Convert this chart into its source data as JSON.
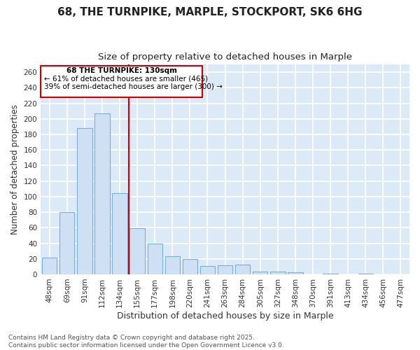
{
  "title": "68, THE TURNPIKE, MARPLE, STOCKPORT, SK6 6HG",
  "subtitle": "Size of property relative to detached houses in Marple",
  "xlabel": "Distribution of detached houses by size in Marple",
  "ylabel": "Number of detached properties",
  "categories": [
    "48sqm",
    "69sqm",
    "91sqm",
    "112sqm",
    "134sqm",
    "155sqm",
    "177sqm",
    "198sqm",
    "220sqm",
    "241sqm",
    "263sqm",
    "284sqm",
    "305sqm",
    "327sqm",
    "348sqm",
    "370sqm",
    "391sqm",
    "413sqm",
    "434sqm",
    "456sqm",
    "477sqm"
  ],
  "values": [
    22,
    80,
    188,
    207,
    104,
    59,
    40,
    23,
    20,
    11,
    12,
    13,
    4,
    4,
    3,
    0,
    1,
    0,
    1,
    0,
    0
  ],
  "bar_color": "#cfe0f5",
  "bar_edge_color": "#7bafd4",
  "vline_color": "#cc0000",
  "vline_label": "68 THE TURNPIKE: 130sqm",
  "annotation_line1": "← 61% of detached houses are smaller (465)",
  "annotation_line2": "39% of semi-detached houses are larger (300) →",
  "box_color": "#cc0000",
  "ylim": [
    0,
    270
  ],
  "yticks": [
    0,
    20,
    40,
    60,
    80,
    100,
    120,
    140,
    160,
    180,
    200,
    220,
    240,
    260
  ],
  "footnote1": "Contains HM Land Registry data © Crown copyright and database right 2025.",
  "footnote2": "Contains public sector information licensed under the Open Government Licence v3.0.",
  "fig_bg_color": "#ffffff",
  "plot_bg_color": "#dce9f7",
  "grid_color": "#ffffff",
  "title_fontsize": 11,
  "subtitle_fontsize": 9.5,
  "tick_fontsize": 7.5,
  "ylabel_fontsize": 8.5,
  "xlabel_fontsize": 9,
  "footnote_fontsize": 6.5
}
